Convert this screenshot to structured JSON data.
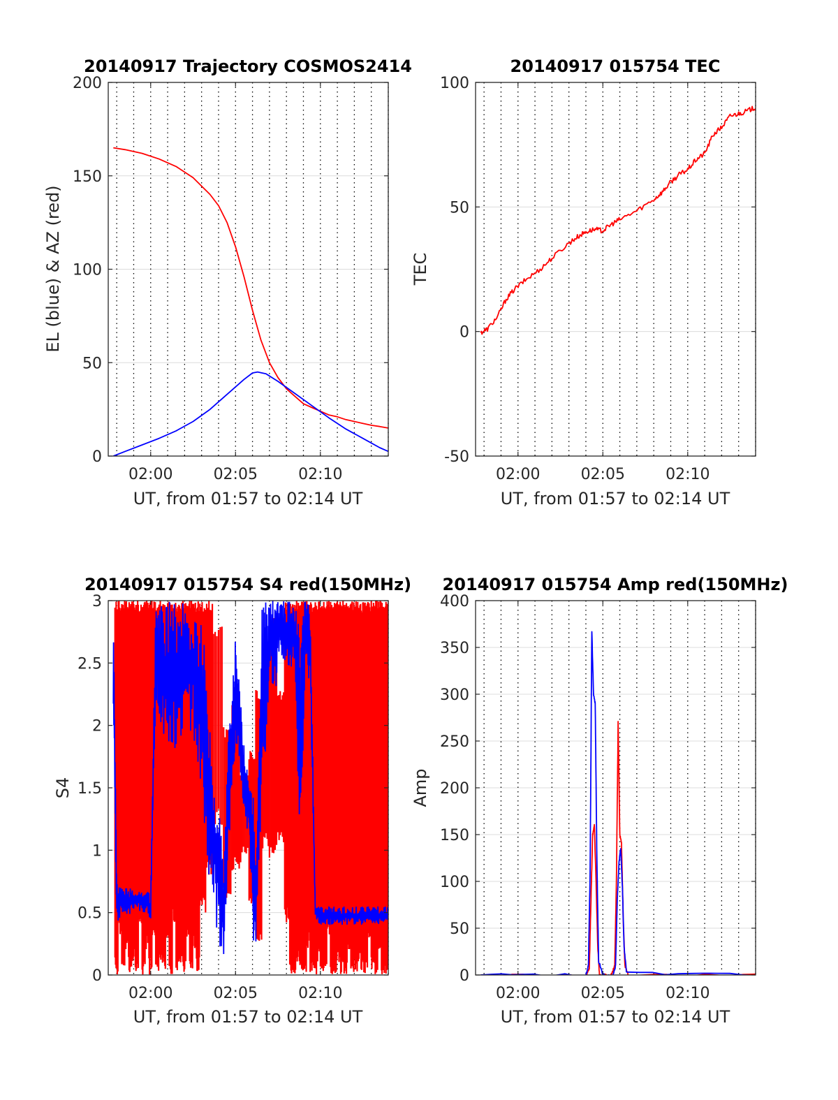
{
  "chart_data": [
    {
      "id": "trajectory",
      "type": "line",
      "title": "20140917 Trajectory COSMOS2414",
      "xlabel": "UT, from 01:57 to 02:14 UT",
      "ylabel": "EL (blue) & AZ (red)",
      "xlim": [
        117.5,
        134.0
      ],
      "ylim": [
        0,
        200
      ],
      "x_ticks": [
        120,
        125,
        130
      ],
      "x_tick_labels": [
        "02:00",
        "02:05",
        "02:10"
      ],
      "y_ticks": [
        0,
        50,
        100,
        150,
        200
      ],
      "y_tick_labels": [
        "0",
        "50",
        "100",
        "150",
        "200"
      ],
      "grid": true,
      "colors": {
        "AZ": "#ff0000",
        "EL": "#0000ff"
      },
      "series": [
        {
          "key": "AZ",
          "color": "#ff0000",
          "x": [
            117.8,
            118.5,
            119.5,
            120.5,
            121.5,
            122.5,
            123.5,
            124.0,
            124.5,
            125.0,
            125.5,
            126.0,
            126.5,
            127.0,
            127.5,
            128.0,
            128.5,
            129.0,
            129.5,
            130.0,
            130.5,
            131.0,
            131.5,
            132.0,
            132.5,
            133.0,
            133.5,
            134.0
          ],
          "y": [
            165,
            164,
            162,
            159,
            155,
            149,
            140,
            134,
            125,
            112,
            96,
            78,
            62,
            50,
            42,
            36,
            32,
            28,
            26,
            24,
            22,
            21,
            19.5,
            18.5,
            17.5,
            16.5,
            15.8,
            15
          ]
        },
        {
          "key": "EL",
          "color": "#0000ff",
          "x": [
            117.8,
            118.5,
            119.5,
            120.5,
            121.5,
            122.5,
            123.5,
            124.5,
            125.5,
            126.0,
            126.3,
            126.8,
            127.5,
            128.5,
            129.5,
            130.5,
            131.5,
            132.5,
            133.5,
            134.0
          ],
          "y": [
            0,
            2.5,
            6,
            9.5,
            13.5,
            18.5,
            25,
            33,
            41,
            44.5,
            45,
            44,
            40,
            33.5,
            27,
            20.5,
            14.5,
            9.5,
            4.5,
            2.5
          ]
        }
      ]
    },
    {
      "id": "tec",
      "type": "line",
      "title": "20140917 015754 TEC",
      "xlabel": "UT, from 01:57 to 02:14 UT",
      "ylabel": "TEC",
      "xlim": [
        117.5,
        134.0
      ],
      "ylim": [
        -50,
        100
      ],
      "x_ticks": [
        120,
        125,
        130
      ],
      "x_tick_labels": [
        "02:00",
        "02:05",
        "02:10"
      ],
      "y_ticks": [
        -50,
        0,
        50,
        100
      ],
      "y_tick_labels": [
        "-50",
        "0",
        "50",
        "100"
      ],
      "grid": true,
      "series": [
        {
          "key": "TEC",
          "color": "#ff0000",
          "x": [
            117.8,
            118.2,
            118.8,
            119.3,
            119.8,
            120.5,
            121.3,
            122.0,
            123.0,
            123.5,
            124.0,
            124.5,
            125.0,
            125.5,
            126.0,
            127.0,
            128.0,
            128.5,
            129.0,
            129.5,
            130.0,
            130.5,
            131.0,
            131.5,
            132.0,
            132.5,
            133.0,
            133.5,
            134.0
          ],
          "y": [
            -0.5,
            1,
            6,
            13,
            17,
            21,
            25,
            29.5,
            35.5,
            38,
            40,
            41,
            40.5,
            43,
            45,
            48.5,
            53,
            56,
            60,
            63,
            65,
            69,
            71.5,
            79,
            82,
            86.5,
            87.5,
            88.5,
            90
          ]
        }
      ]
    },
    {
      "id": "s4",
      "type": "line",
      "title": "20140917 015754 S4 red(150MHz)",
      "xlabel": "UT, from 01:57 to 02:14 UT",
      "ylabel": "S4",
      "xlim": [
        117.5,
        134.0
      ],
      "ylim": [
        0,
        3
      ],
      "x_ticks": [
        120,
        125,
        130
      ],
      "x_tick_labels": [
        "02:00",
        "02:05",
        "02:10"
      ],
      "y_ticks": [
        0,
        0.5,
        1,
        1.5,
        2,
        2.5,
        3
      ],
      "y_tick_labels": [
        "0",
        "0.5",
        "1",
        "1.5",
        "2",
        "2.5",
        "3"
      ],
      "grid": true,
      "series": [
        {
          "key": "S4-red",
          "color": "#ff0000",
          "style": "spikes",
          "x": [
            117.9,
            118.1,
            118.3,
            118.5,
            118.7,
            118.9,
            119.1,
            119.3,
            119.5,
            119.7,
            119.9,
            120.1,
            120.3,
            120.5,
            120.7,
            120.9,
            121.1,
            121.3,
            121.5,
            121.7,
            121.9,
            122.1,
            122.3,
            122.5,
            122.7,
            122.9,
            123.3,
            123.7,
            124.3,
            124.8,
            125.3,
            125.8,
            126.2,
            126.6,
            127.0,
            127.5,
            127.9,
            128.2,
            128.4,
            128.6,
            128.8,
            129.0,
            129.2,
            129.4,
            129.6,
            129.8,
            130.0,
            130.2,
            130.4,
            130.6,
            130.8,
            131.0,
            131.2,
            131.4,
            131.6,
            131.8,
            132.0,
            132.2,
            132.4,
            132.6,
            132.8,
            133.0,
            133.2,
            133.4,
            133.6,
            133.8,
            134.0
          ],
          "lo": [
            0,
            0.3,
            0,
            0.2,
            0,
            0.1,
            0,
            0.4,
            0,
            0.2,
            0,
            0.3,
            0,
            0.1,
            0,
            0.2,
            0,
            0.4,
            0,
            0.1,
            0,
            0.3,
            0,
            0.2,
            0,
            0.5,
            0.8,
            1.2,
            0.6,
            0.8,
            0.9,
            0.5,
            0.2,
            1.0,
            0.9,
            1.0,
            0.4,
            0,
            0,
            0.1,
            0,
            0,
            0.2,
            0,
            0,
            0.1,
            0,
            0,
            0.3,
            0,
            0,
            0.1,
            0,
            0,
            0.2,
            0,
            0,
            0.1,
            0,
            0,
            0.3,
            0,
            0,
            0.2,
            0,
            0,
            0
          ],
          "hi": [
            3,
            3,
            3,
            3,
            3,
            3,
            3,
            3,
            3,
            3,
            3,
            3,
            3,
            3,
            3,
            3,
            3,
            3,
            3,
            3,
            3,
            3,
            3,
            3,
            3,
            3,
            3,
            2.8,
            2.0,
            2.2,
            1.6,
            1.8,
            2.3,
            2.5,
            2.9,
            2.3,
            3,
            3,
            3,
            3,
            3,
            3,
            3,
            3,
            3,
            3,
            3,
            3,
            3,
            3,
            3,
            3,
            3,
            3,
            3,
            3,
            3,
            3,
            3,
            3,
            3,
            3,
            3,
            3,
            3,
            3,
            3
          ]
        },
        {
          "key": "S4-blue",
          "color": "#0000ff",
          "style": "band",
          "x": [
            117.8,
            118.0,
            118.3,
            118.6,
            119.0,
            119.5,
            120.0,
            120.3,
            120.6,
            121.0,
            121.5,
            122.0,
            122.5,
            123.0,
            123.3,
            123.6,
            124.0,
            124.3,
            124.6,
            124.8,
            125.0,
            125.3,
            125.6,
            125.8,
            126.0,
            126.2,
            126.5,
            126.8,
            127.0,
            127.3,
            127.6,
            127.9,
            128.2,
            128.5,
            128.8,
            129.1,
            129.4,
            129.7,
            130.0,
            130.3,
            130.6,
            131.0,
            131.5,
            132.0,
            132.5,
            133.0,
            133.5,
            134.0
          ],
          "lo": [
            2.1,
            0.4,
            0.5,
            0.45,
            0.5,
            0.5,
            0.45,
            2.2,
            2.0,
            1.8,
            1.7,
            2.0,
            1.9,
            1.5,
            1.0,
            0.5,
            0.2,
            0.1,
            0.9,
            1.5,
            1.8,
            1.5,
            1.2,
            1.1,
            0.3,
            0.2,
            1.3,
            1.7,
            2.5,
            2.2,
            2.6,
            2.5,
            2.4,
            2.5,
            0.8,
            2.5,
            2.3,
            0.45,
            0.4,
            0.4,
            0.4,
            0.4,
            0.4,
            0.4,
            0.4,
            0.4,
            0.4,
            0.4
          ],
          "hi": [
            3,
            0.75,
            0.7,
            0.7,
            0.7,
            0.7,
            0.65,
            3,
            3,
            3,
            3,
            3,
            3,
            3,
            2.5,
            1.8,
            1.5,
            0.8,
            2.0,
            2.3,
            2.7,
            2.2,
            1.8,
            1.5,
            1.6,
            0.9,
            3,
            3,
            3,
            3,
            3,
            3,
            3,
            3,
            3,
            3,
            3,
            0.55,
            0.55,
            0.55,
            0.55,
            0.55,
            0.55,
            0.55,
            0.55,
            0.55,
            0.55,
            0.55
          ]
        }
      ]
    },
    {
      "id": "amp",
      "type": "line",
      "title": "20140917 015754 Amp red(150MHz)",
      "xlabel": "UT, from 01:57 to 02:14 UT",
      "ylabel": "Amp",
      "xlim": [
        117.5,
        134.0
      ],
      "ylim": [
        0,
        400
      ],
      "x_ticks": [
        120,
        125,
        130
      ],
      "x_tick_labels": [
        "02:00",
        "02:05",
        "02:10"
      ],
      "y_ticks": [
        0,
        50,
        100,
        150,
        200,
        250,
        300,
        350,
        400
      ],
      "y_tick_labels": [
        "0",
        "50",
        "100",
        "150",
        "200",
        "250",
        "300",
        "350",
        "400"
      ],
      "grid": true,
      "series": [
        {
          "key": "Amp-red",
          "color": "#ff0000",
          "x": [
            117.8,
            124.0,
            124.2,
            124.3,
            124.4,
            124.5,
            124.6,
            124.7,
            124.8,
            125.5,
            125.7,
            125.8,
            125.9,
            126.0,
            126.1,
            126.2,
            126.3,
            126.5,
            134.0
          ],
          "y": [
            0,
            0,
            5,
            80,
            150,
            160,
            100,
            30,
            0,
            0,
            10,
            100,
            270,
            150,
            140,
            60,
            10,
            0,
            0
          ]
        },
        {
          "key": "Amp-blue",
          "color": "#0000ff",
          "x": [
            117.8,
            124.0,
            124.15,
            124.25,
            124.35,
            124.45,
            124.55,
            124.65,
            124.75,
            125.0,
            125.6,
            125.75,
            125.85,
            125.95,
            126.05,
            126.15,
            126.25,
            126.4,
            134.0
          ],
          "y": [
            0,
            0,
            10,
            110,
            368,
            300,
            290,
            120,
            15,
            0,
            0,
            10,
            80,
            120,
            135,
            95,
            30,
            2,
            0
          ]
        }
      ]
    }
  ]
}
